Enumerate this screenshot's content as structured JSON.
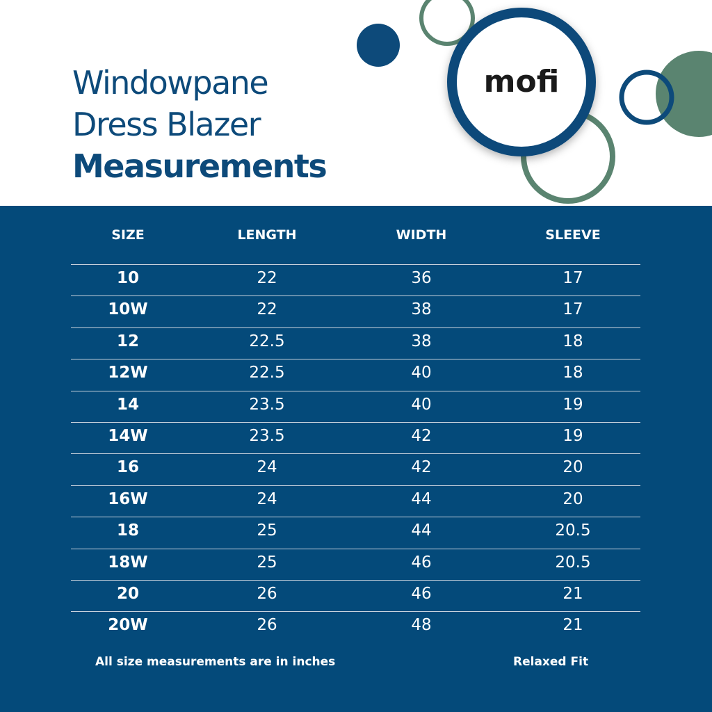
{
  "header": {
    "title_lines": [
      "Windowpane",
      "Dress Blazer",
      "Measurements"
    ],
    "logo": "mofi"
  },
  "table": {
    "columns": [
      "SIZE",
      "LENGTH",
      "WIDTH",
      "SLEEVE"
    ],
    "rows": [
      [
        "10",
        22,
        36,
        17
      ],
      [
        "10W",
        22,
        38,
        17
      ],
      [
        "12",
        22.5,
        38,
        18
      ],
      [
        "12W",
        22.5,
        40,
        18
      ],
      [
        "14",
        23.5,
        40,
        19
      ],
      [
        "14W",
        23.5,
        42,
        19
      ],
      [
        "16",
        24,
        42,
        20
      ],
      [
        "16W",
        24,
        44,
        20
      ],
      [
        "18",
        25,
        44,
        20.5
      ],
      [
        "18W",
        25,
        46,
        20.5
      ],
      [
        "20",
        26,
        46,
        21
      ],
      [
        "20W",
        26,
        48,
        21
      ]
    ]
  },
  "footer": {
    "note": "All size measurements are in inches",
    "fit": "Relaxed Fit"
  }
}
